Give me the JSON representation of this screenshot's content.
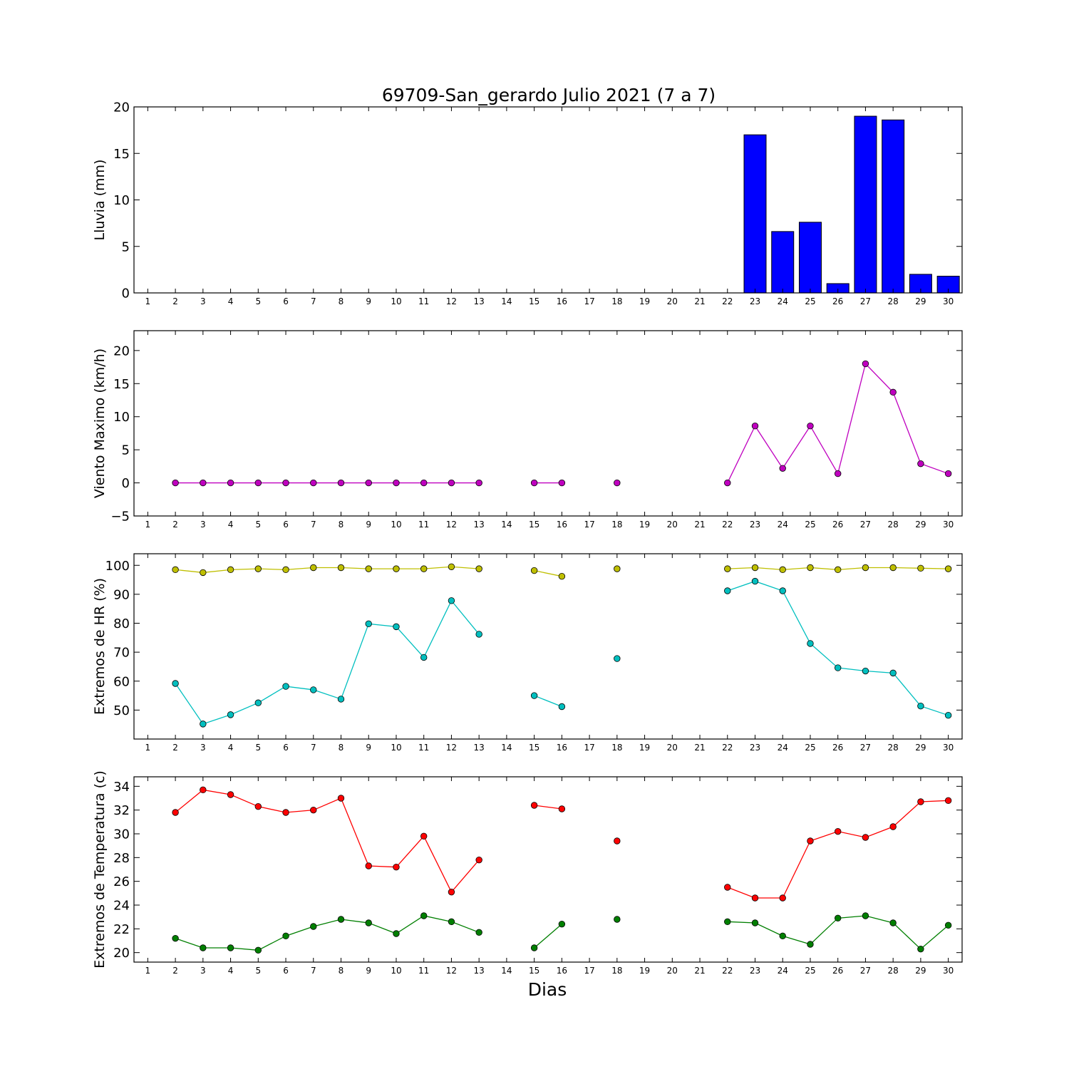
{
  "figure": {
    "title": "69709-San_gerardo Julio 2021  (7 a 7)",
    "xlabel": "Dias"
  },
  "chart_data": [
    {
      "type": "bar",
      "ylabel": "Lluvia (mm)",
      "xlim": [
        0.5,
        30.5
      ],
      "ylim": [
        0,
        20
      ],
      "yticks": [
        0,
        5,
        10,
        15,
        20
      ],
      "xticks": [
        1,
        2,
        3,
        4,
        5,
        6,
        7,
        8,
        9,
        10,
        11,
        12,
        13,
        14,
        15,
        16,
        17,
        18,
        19,
        20,
        21,
        22,
        23,
        24,
        25,
        26,
        27,
        28,
        29,
        30
      ],
      "grid": false,
      "series": [
        {
          "color": "#0000ff",
          "x": [
            2,
            3,
            4,
            5,
            6,
            7,
            8,
            9,
            10,
            11,
            12,
            13,
            15,
            16,
            18,
            22,
            23,
            24,
            25,
            26,
            27,
            28,
            29,
            30
          ],
          "values": [
            0,
            0,
            0,
            0,
            0,
            0,
            0,
            0,
            0,
            0,
            0,
            0,
            0,
            0,
            0,
            0,
            17.0,
            6.6,
            7.6,
            1.0,
            19.0,
            18.6,
            2.0,
            1.8
          ]
        }
      ]
    },
    {
      "type": "line",
      "ylabel": "Viento Maximo (km/h)",
      "xlim": [
        0.5,
        30.5
      ],
      "ylim": [
        -5,
        23
      ],
      "yticks": [
        -5,
        0,
        5,
        10,
        15,
        20
      ],
      "xticks": [
        1,
        2,
        3,
        4,
        5,
        6,
        7,
        8,
        9,
        10,
        11,
        12,
        13,
        14,
        15,
        16,
        17,
        18,
        19,
        20,
        21,
        22,
        23,
        24,
        25,
        26,
        27,
        28,
        29,
        30
      ],
      "grid": false,
      "series": [
        {
          "color": "#bf00bf",
          "x": [
            2,
            3,
            4,
            5,
            6,
            7,
            8,
            9,
            10,
            11,
            12,
            13,
            14,
            15,
            16,
            17,
            18,
            19,
            20,
            21,
            22,
            23,
            24,
            25,
            26,
            27,
            28,
            29,
            30
          ],
          "y": [
            0,
            0,
            0,
            0,
            0,
            0,
            0,
            0,
            0,
            0,
            0,
            0,
            null,
            0,
            0,
            null,
            0,
            null,
            null,
            null,
            0,
            8.6,
            2.2,
            8.6,
            1.4,
            18.0,
            13.7,
            2.9,
            1.4
          ]
        }
      ]
    },
    {
      "type": "line",
      "ylabel": "Extremos de HR (%)",
      "xlim": [
        0.5,
        30.5
      ],
      "ylim": [
        40,
        104
      ],
      "yticks": [
        50,
        60,
        70,
        80,
        90,
        100
      ],
      "xticks": [
        1,
        2,
        3,
        4,
        5,
        6,
        7,
        8,
        9,
        10,
        11,
        12,
        13,
        14,
        15,
        16,
        17,
        18,
        19,
        20,
        21,
        22,
        23,
        24,
        25,
        26,
        27,
        28,
        29,
        30
      ],
      "grid": false,
      "series": [
        {
          "color": "#bfbf00",
          "x": [
            2,
            3,
            4,
            5,
            6,
            7,
            8,
            9,
            10,
            11,
            12,
            13,
            14,
            15,
            16,
            17,
            18,
            19,
            20,
            21,
            22,
            23,
            24,
            25,
            26,
            27,
            28,
            29,
            30
          ],
          "y": [
            98.5,
            97.5,
            98.5,
            98.8,
            98.5,
            99.2,
            99.2,
            98.8,
            98.8,
            98.8,
            99.5,
            98.8,
            null,
            98.2,
            96.2,
            null,
            98.8,
            null,
            null,
            null,
            98.8,
            99.2,
            98.5,
            99.2,
            98.5,
            99.2,
            99.2,
            99.0,
            98.8
          ]
        },
        {
          "color": "#00bfbf",
          "x": [
            2,
            3,
            4,
            5,
            6,
            7,
            8,
            9,
            10,
            11,
            12,
            13,
            14,
            15,
            16,
            17,
            18,
            19,
            20,
            21,
            22,
            23,
            24,
            25,
            26,
            27,
            28,
            29,
            30
          ],
          "y": [
            59.2,
            45.2,
            48.4,
            52.5,
            58.2,
            57.0,
            53.8,
            79.8,
            78.8,
            68.2,
            87.8,
            76.2,
            null,
            55.0,
            51.2,
            null,
            67.8,
            null,
            null,
            null,
            91.2,
            94.5,
            91.2,
            73.0,
            64.6,
            63.5,
            62.8,
            51.4,
            48.2
          ]
        }
      ]
    },
    {
      "type": "line",
      "ylabel": "Extremos de Temperatura (c)",
      "xlim": [
        0.5,
        30.5
      ],
      "ylim": [
        19.2,
        34.8
      ],
      "yticks": [
        20,
        22,
        24,
        26,
        28,
        30,
        32,
        34
      ],
      "xticks": [
        1,
        2,
        3,
        4,
        5,
        6,
        7,
        8,
        9,
        10,
        11,
        12,
        13,
        14,
        15,
        16,
        17,
        18,
        19,
        20,
        21,
        22,
        23,
        24,
        25,
        26,
        27,
        28,
        29,
        30
      ],
      "grid": false,
      "series": [
        {
          "color": "#ff0000",
          "x": [
            2,
            3,
            4,
            5,
            6,
            7,
            8,
            9,
            10,
            11,
            12,
            13,
            14,
            15,
            16,
            17,
            18,
            19,
            20,
            21,
            22,
            23,
            24,
            25,
            26,
            27,
            28,
            29,
            30
          ],
          "y": [
            31.8,
            33.7,
            33.3,
            32.3,
            31.8,
            32.0,
            33.0,
            27.3,
            27.2,
            29.8,
            25.1,
            27.8,
            null,
            32.4,
            32.1,
            null,
            29.4,
            null,
            null,
            null,
            25.5,
            24.6,
            24.6,
            29.4,
            30.2,
            29.7,
            30.6,
            32.7,
            32.8
          ]
        },
        {
          "color": "#007f00",
          "x": [
            2,
            3,
            4,
            5,
            6,
            7,
            8,
            9,
            10,
            11,
            12,
            13,
            14,
            15,
            16,
            17,
            18,
            19,
            20,
            21,
            22,
            23,
            24,
            25,
            26,
            27,
            28,
            29,
            30
          ],
          "y": [
            21.2,
            20.4,
            20.4,
            20.2,
            21.4,
            22.2,
            22.8,
            22.5,
            21.6,
            23.1,
            22.6,
            21.7,
            null,
            20.4,
            22.4,
            null,
            22.8,
            null,
            null,
            null,
            22.6,
            22.5,
            21.4,
            20.7,
            22.9,
            23.1,
            22.5,
            20.3,
            22.3
          ]
        }
      ]
    }
  ]
}
